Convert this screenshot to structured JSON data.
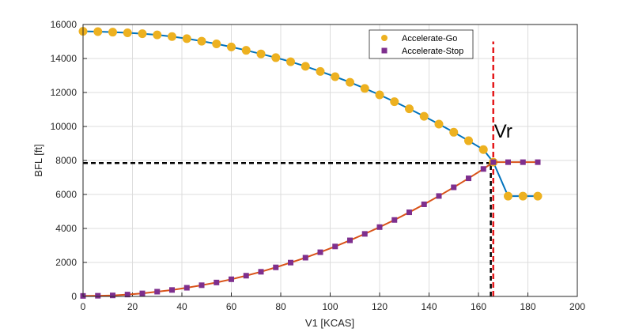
{
  "chart_data": {
    "type": "line",
    "title": "",
    "xlabel": "V1 [KCAS]",
    "ylabel": "BFL [ft]",
    "xlim": [
      0,
      200
    ],
    "ylim": [
      0,
      16000
    ],
    "xticks": [
      "0",
      "20",
      "40",
      "60",
      "80",
      "100",
      "120",
      "140",
      "160",
      "180",
      "200"
    ],
    "yticks": [
      "0",
      "2000",
      "4000",
      "6000",
      "8000",
      "10000",
      "12000",
      "14000",
      "16000"
    ],
    "grid": true,
    "legend_position": "top-right",
    "series": [
      {
        "name": "Accelerate-Go",
        "marker": "circle",
        "marker_color": "#EDB120",
        "line_color": "#0072BD",
        "x": [
          0,
          6,
          12,
          18,
          24,
          30,
          36,
          42,
          48,
          54,
          60,
          66,
          72,
          78,
          84,
          90,
          96,
          102,
          108,
          114,
          120,
          126,
          132,
          138,
          144,
          150,
          156,
          162,
          166,
          172,
          178,
          184
        ],
        "y": [
          15600,
          15580,
          15550,
          15510,
          15460,
          15390,
          15290,
          15170,
          15020,
          14860,
          14680,
          14480,
          14270,
          14050,
          13810,
          13540,
          13240,
          12930,
          12600,
          12240,
          11860,
          11460,
          11040,
          10600,
          10140,
          9660,
          9160,
          8640,
          7900,
          5900,
          5900,
          5900
        ]
      },
      {
        "name": "Accelerate-Stop",
        "marker": "square",
        "marker_color": "#7E2F8E",
        "line_color": "#D95319",
        "x": [
          0,
          6,
          12,
          18,
          24,
          30,
          36,
          42,
          48,
          54,
          60,
          66,
          72,
          78,
          84,
          90,
          96,
          102,
          108,
          114,
          120,
          126,
          132,
          138,
          144,
          150,
          156,
          162,
          166,
          172,
          178,
          184
        ],
        "y": [
          30,
          40,
          60,
          110,
          180,
          280,
          380,
          510,
          660,
          820,
          1010,
          1220,
          1450,
          1710,
          1990,
          2280,
          2600,
          2940,
          3300,
          3680,
          4080,
          4500,
          4950,
          5420,
          5910,
          6420,
          6950,
          7500,
          7900,
          7900,
          7900,
          7900
        ]
      }
    ],
    "reference_lines": [
      {
        "orientation": "horizontal",
        "y": 7850,
        "x_range": [
          0,
          166
        ],
        "color": "#000000",
        "style": "dashed"
      },
      {
        "orientation": "vertical",
        "x": 165,
        "y_range": [
          0,
          7850
        ],
        "color": "#000000",
        "style": "dashed"
      },
      {
        "orientation": "vertical",
        "x": 166,
        "y_range": [
          0,
          15000
        ],
        "color": "#E41A1C",
        "style": "dashed"
      }
    ],
    "annotations": [
      {
        "text": "Vr",
        "x": 166,
        "y": 9400
      }
    ]
  }
}
